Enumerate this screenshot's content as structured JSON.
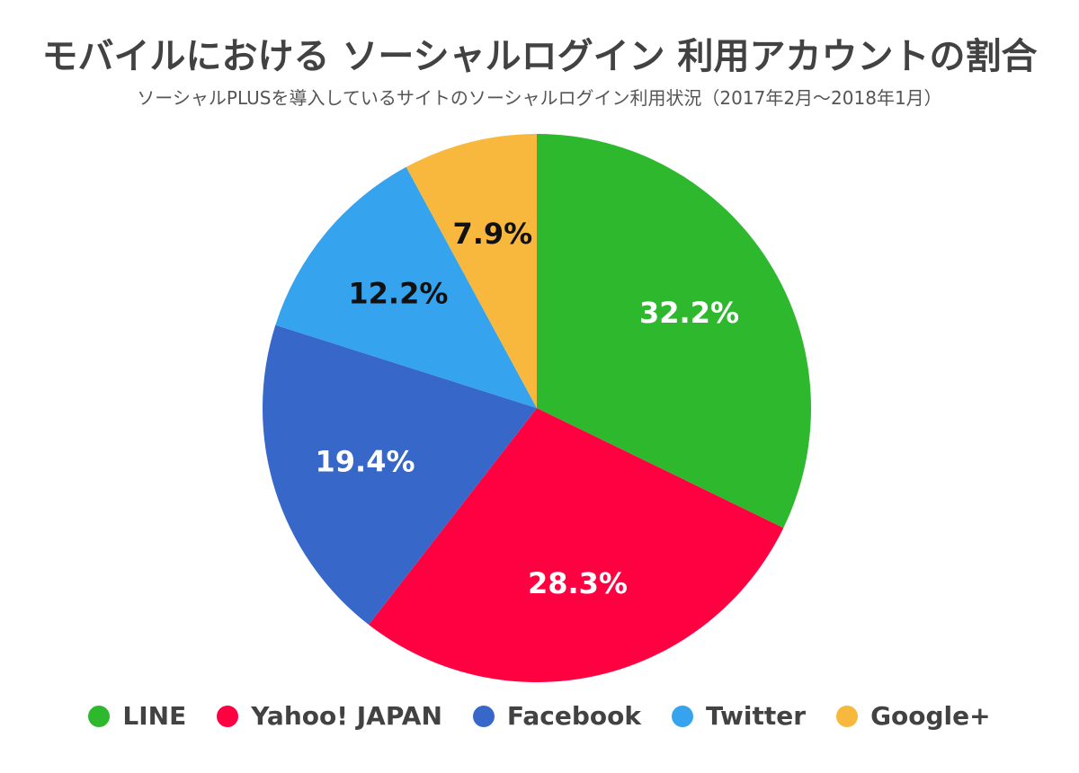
{
  "chart_data": {
    "type": "pie",
    "title": "モバイルにおける ソーシャルログイン 利用アカウントの割合",
    "subtitle": "ソーシャルPLUSを導入しているサイトのソーシャルログイン利用状況（2017年2月〜2018年1月）",
    "legend_position": "bottom",
    "slices": [
      {
        "name": "LINE",
        "value": 32.2,
        "label": "32.2%",
        "color": "#2db82d",
        "label_color": "#ffffff"
      },
      {
        "name": "Yahoo! JAPAN",
        "value": 28.3,
        "label": "28.3%",
        "color": "#ff0040",
        "label_color": "#ffffff"
      },
      {
        "name": "Facebook",
        "value": 19.4,
        "label": "19.4%",
        "color": "#3767c8",
        "label_color": "#ffffff"
      },
      {
        "name": "Twitter",
        "value": 12.2,
        "label": "12.2%",
        "color": "#35a3ed",
        "label_color": "#111111"
      },
      {
        "name": "Google+",
        "value": 7.9,
        "label": "7.9%",
        "color": "#f7b83d",
        "label_color": "#111111"
      }
    ]
  }
}
